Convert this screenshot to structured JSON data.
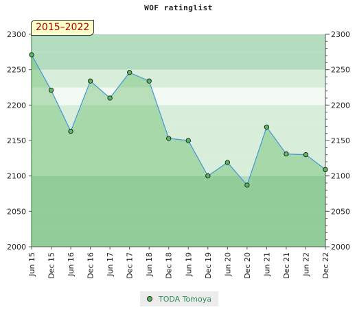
{
  "chart_data": {
    "type": "area",
    "title": "WOF ratinglist",
    "period_label": "2015–2022",
    "x": [
      "Jun 15",
      "Dec 15",
      "Jun 16",
      "Dec 16",
      "Jun 17",
      "Dec 17",
      "Jun 18",
      "Dec 18",
      "Jun 19",
      "Dec 19",
      "Jun 20",
      "Dec 20",
      "Jun 21",
      "Dec 21",
      "Jun 22",
      "Dec 22"
    ],
    "series": [
      {
        "name": "TODA Tomoya",
        "values": [
          2271,
          2221,
          2163,
          2234,
          2210,
          2246,
          2234,
          2153,
          2150,
          2100,
          2119,
          2087,
          2169,
          2131,
          2130,
          2109
        ]
      }
    ],
    "ylim": [
      2000,
      2300
    ],
    "y_ticks": [
      2000,
      2050,
      2100,
      2150,
      2200,
      2250,
      2300
    ],
    "y_ticks_right": true,
    "legend_position": "bottom-center",
    "colors": {
      "line": "#4a9bd4",
      "marker": "#5cb85c",
      "area_fill": "#4caf50",
      "band_light": "#f2f9f2",
      "band_mid": "#d8eedb",
      "band_dark": "#b4ddbf"
    }
  }
}
